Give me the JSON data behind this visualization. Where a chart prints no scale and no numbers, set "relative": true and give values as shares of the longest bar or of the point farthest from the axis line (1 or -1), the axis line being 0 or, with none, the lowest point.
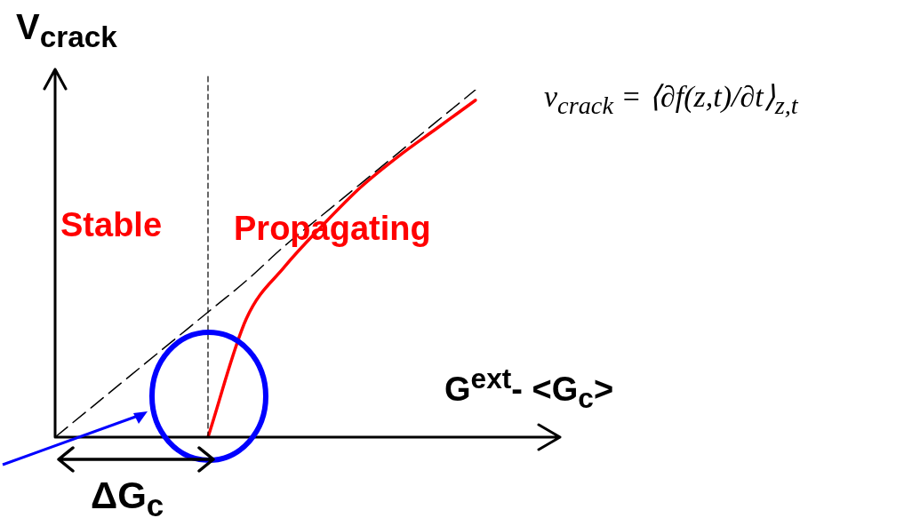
{
  "chart_data": {
    "type": "line",
    "relative": true,
    "xlabel": "G$^{ext}$- <G$_{c}$>",
    "ylabel": "V$_{crack}$",
    "legend": false,
    "categories": [
      null,
      null,
      null,
      null,
      null,
      null,
      null,
      null,
      null,
      null,
      null,
      null
    ],
    "series": [
      {
        "color": "#000000",
        "line_style": "dashed",
        "values": [
          0,
          0.09,
          0.18,
          0.27,
          0.36,
          0.45,
          0.55,
          0.64,
          0.73,
          0.82,
          0.91,
          1
        ]
      },
      {
        "color": "#ff0000",
        "line_style": "solid",
        "values": [
          null,
          null,
          null,
          null,
          0,
          0.34,
          0.49,
          0.61,
          0.72,
          0.81,
          0.89,
          0.97
        ]
      }
    ],
    "annotations": [
      "Stable",
      "Propagating",
      "ΔG$_{c}$",
      "v$_{crack}$ = ⟨∂f(z,t)/∂t⟩$_{z,t}$"
    ]
  }
}
